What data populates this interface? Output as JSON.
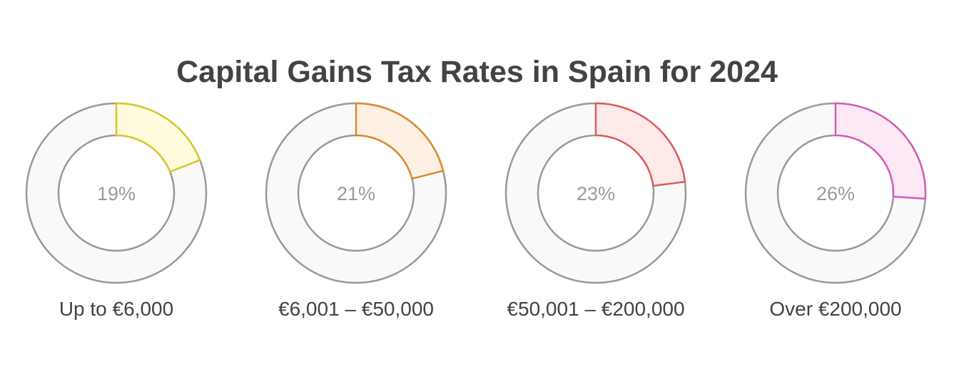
{
  "chart_data": {
    "type": "donut",
    "title": "Capital Gains Tax Rates in Spain for 2024",
    "max": 100,
    "unit": "%",
    "categories": [
      "Up to €6,000",
      "€6,001 – €50,000",
      "€50,001 – €200,000",
      "Over €200,000"
    ],
    "values": [
      19,
      21,
      23,
      26
    ],
    "value_labels": [
      "19%",
      "21%",
      "23%",
      "26%"
    ],
    "colors": {
      "strokes": [
        "#d8c92a",
        "#d98a30",
        "#e05a5a",
        "#d45cb4"
      ],
      "fills": [
        "#fffbdc",
        "#fff0e4",
        "#ffeaea",
        "#fde8f6"
      ],
      "track_fill": "#f9f9f9",
      "track_stroke": "#999999"
    }
  }
}
